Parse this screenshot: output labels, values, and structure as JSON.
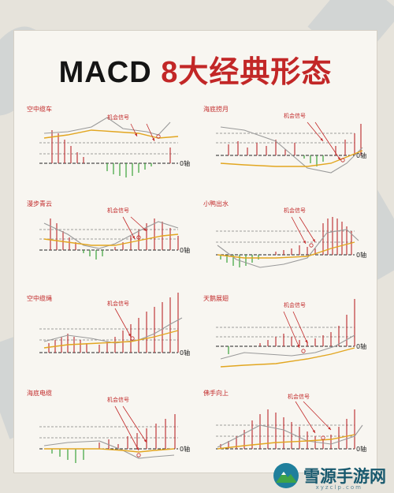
{
  "header": {
    "title_main": "MACD",
    "title_accent": "8大经典形态"
  },
  "panels": [
    {
      "name": "空中缆车",
      "signal": "机会信号",
      "zero": "0轴"
    },
    {
      "name": "海底捞月",
      "signal": "机会信号",
      "zero": "0轴"
    },
    {
      "name": "漫步青云",
      "signal": "机会信号",
      "zero": "0轴"
    },
    {
      "name": "小鸭出水",
      "signal": "机会信号",
      "zero": "0轴"
    },
    {
      "name": "空中缆绳",
      "signal": "机会信号",
      "zero": "0轴"
    },
    {
      "name": "天鹅展翅",
      "signal": "机会信号",
      "zero": "0轴"
    },
    {
      "name": "海底电缆",
      "signal": "机会信号",
      "zero": "0轴"
    },
    {
      "name": "佛手向上",
      "signal": "机会信号",
      "zero": "0轴"
    }
  ],
  "watermark": {
    "text": "雪源手游网",
    "sub": "xyzclp.com"
  },
  "colors": {
    "accent": "#c22727",
    "bars_up": "#c0393b",
    "bars_down": "#3aa33a",
    "dif": "#9a9a9a",
    "dea": "#e2a620"
  }
}
